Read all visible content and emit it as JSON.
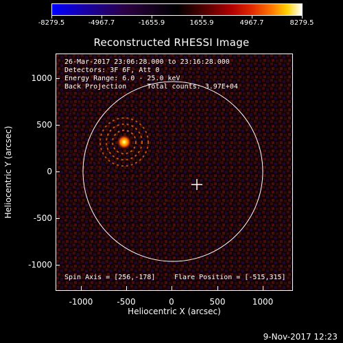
{
  "colorbar": {
    "labels": [
      "-8279.5",
      "-4967.7",
      "-1655.9",
      "1655.9",
      "4967.7",
      "8279.5"
    ]
  },
  "plot": {
    "title": "Reconstructed RHESSI Image",
    "info_lines": [
      "26-Mar-2017 23:06:28.000 to 23:16:28.000",
      "Detectors: 3F 6F, Att 0",
      "Energy Range: 6.0 - 25.0 keV",
      "Back Projection     Total counts: 3.97E+04"
    ],
    "spin_axis": "Spin Axis = [256,-178]",
    "flare_position": "Flare Position = [-515,315]",
    "xaxis_title": "Heliocentric X (arcsec)",
    "yaxis_title": "Heliocentric Y (arcsec)",
    "x_ticks": [
      "-1000",
      "-500",
      "0",
      "500",
      "1000"
    ],
    "y_ticks": [
      "1000",
      "500",
      "0",
      "-500",
      "-1000"
    ]
  },
  "footer": {
    "date": "9-Nov-2017 12:23"
  }
}
